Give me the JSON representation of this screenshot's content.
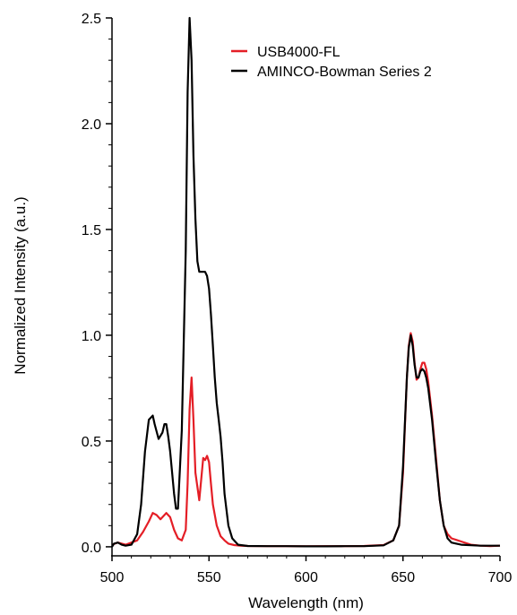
{
  "chart_data": {
    "type": "line",
    "title": "",
    "xlabel": "Wavelength (nm)",
    "ylabel": "Normalized Intensity (a.u.)",
    "xlim": [
      500,
      700
    ],
    "ylim": [
      -0.03,
      2.5
    ],
    "x_ticks": [
      500,
      550,
      600,
      650,
      700
    ],
    "x_tick_labels": [
      "500",
      "550",
      "600",
      "650",
      "700"
    ],
    "y_ticks": [
      0.0,
      0.5,
      1.0,
      1.5,
      2.0,
      2.5
    ],
    "y_tick_labels": [
      "0.0",
      "0.5",
      "1.0",
      "1.5",
      "2.0",
      "2.5"
    ],
    "grid": false,
    "legend_position": "top-right",
    "series": [
      {
        "name": "USB4000-FL",
        "color": "#e41e26",
        "x": [
          500,
          503,
          507,
          510,
          513,
          516,
          519,
          521,
          523,
          525,
          527,
          528,
          530,
          532,
          534,
          536,
          538,
          539,
          540,
          541,
          542,
          543,
          545,
          547,
          548,
          549,
          550,
          551,
          552,
          554,
          556,
          558,
          560,
          563,
          566,
          570,
          580,
          590,
          600,
          610,
          620,
          630,
          640,
          645,
          648,
          650,
          652,
          653,
          654,
          655,
          656,
          657,
          658,
          659,
          660,
          661,
          662,
          663,
          665,
          667,
          669,
          671,
          673,
          675,
          680,
          685,
          690,
          695,
          700
        ],
        "y": [
          0.01,
          0.02,
          0.01,
          0.02,
          0.03,
          0.07,
          0.12,
          0.16,
          0.15,
          0.13,
          0.15,
          0.16,
          0.14,
          0.08,
          0.04,
          0.03,
          0.08,
          0.3,
          0.65,
          0.8,
          0.6,
          0.35,
          0.22,
          0.42,
          0.41,
          0.43,
          0.4,
          0.3,
          0.2,
          0.1,
          0.05,
          0.03,
          0.015,
          0.008,
          0.005,
          0.004,
          0.003,
          0.003,
          0.002,
          0.003,
          0.003,
          0.004,
          0.008,
          0.03,
          0.1,
          0.35,
          0.8,
          0.95,
          1.01,
          0.97,
          0.87,
          0.79,
          0.8,
          0.84,
          0.87,
          0.87,
          0.84,
          0.78,
          0.62,
          0.42,
          0.22,
          0.1,
          0.06,
          0.04,
          0.025,
          0.01,
          0.005,
          0.003,
          0.005
        ]
      },
      {
        "name": "AMINCO-Bowman Series 2",
        "color": "#000000",
        "x": [
          500,
          501,
          503,
          505,
          507,
          510,
          513,
          515,
          517,
          519,
          521,
          522,
          524,
          526,
          527,
          528,
          529,
          530,
          532,
          533,
          534,
          536,
          538,
          539,
          540,
          541,
          542,
          543,
          544,
          545,
          547,
          548,
          549,
          550,
          551,
          552,
          553,
          554,
          555,
          556,
          557,
          558,
          560,
          562,
          565,
          570,
          580,
          590,
          600,
          610,
          620,
          630,
          640,
          645,
          648,
          650,
          652,
          653,
          654,
          655,
          656,
          657,
          658,
          659,
          660,
          661,
          662,
          663,
          665,
          667,
          669,
          671,
          673,
          675,
          680,
          690,
          700
        ],
        "y": [
          0.0,
          0.015,
          0.02,
          0.01,
          0.005,
          0.01,
          0.06,
          0.2,
          0.45,
          0.6,
          0.62,
          0.58,
          0.51,
          0.54,
          0.58,
          0.58,
          0.52,
          0.45,
          0.25,
          0.18,
          0.18,
          0.55,
          1.4,
          2.15,
          2.5,
          2.3,
          1.85,
          1.55,
          1.35,
          1.3,
          1.3,
          1.3,
          1.28,
          1.22,
          1.1,
          0.95,
          0.8,
          0.68,
          0.6,
          0.52,
          0.4,
          0.25,
          0.1,
          0.04,
          0.01,
          0.004,
          0.003,
          0.003,
          0.002,
          0.002,
          0.003,
          0.003,
          0.007,
          0.03,
          0.1,
          0.38,
          0.8,
          0.94,
          1.0,
          0.95,
          0.86,
          0.8,
          0.8,
          0.83,
          0.84,
          0.83,
          0.8,
          0.75,
          0.6,
          0.4,
          0.22,
          0.1,
          0.04,
          0.02,
          0.01,
          0.005,
          0.005
        ]
      }
    ]
  }
}
